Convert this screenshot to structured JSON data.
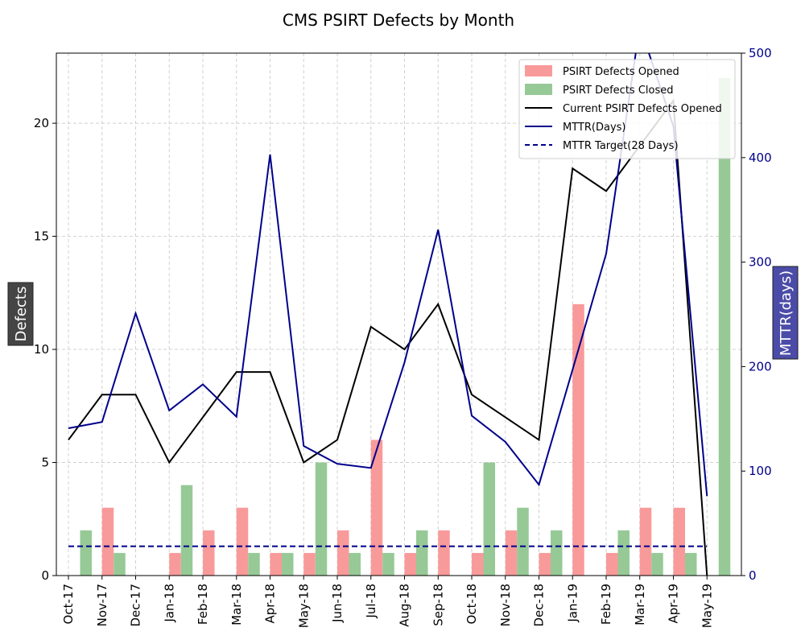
{
  "chart_data": {
    "type": "bar",
    "title": "CMS PSIRT Defects by Month",
    "ylabel": "Defects",
    "ylabel_right": "MTTR(days)",
    "xlabel": "",
    "categories": [
      "Oct-17",
      "Nov-17",
      "Dec-17",
      "Jan-18",
      "Feb-18",
      "Mar-18",
      "Apr-18",
      "May-18",
      "Jun-18",
      "Jul-18",
      "Aug-18",
      "Sep-18",
      "Oct-18",
      "Nov-18",
      "Dec-18",
      "Jan-19",
      "Feb-19",
      "Mar-19",
      "Apr-19",
      "May-19"
    ],
    "ylim": [
      0,
      23.1
    ],
    "ylim_right": [
      0,
      500
    ],
    "yticks": [
      0,
      5,
      10,
      15,
      20
    ],
    "yticks_right": [
      0,
      100,
      200,
      300,
      400,
      500
    ],
    "grid": true,
    "legend_position": "top-right",
    "series": [
      {
        "name": "PSIRT Defects Opened",
        "kind": "bar",
        "axis": "left",
        "color": "#f99a9a",
        "values": [
          0,
          3,
          0,
          1,
          2,
          3,
          1,
          1,
          2,
          6,
          1,
          2,
          1,
          2,
          1,
          12,
          1,
          3,
          3,
          0
        ]
      },
      {
        "name": "PSIRT Defects Closed",
        "kind": "bar",
        "axis": "left",
        "color": "#96c996",
        "values": [
          2,
          1,
          0,
          4,
          0,
          1,
          1,
          5,
          1,
          1,
          2,
          0,
          5,
          3,
          2,
          0,
          2,
          1,
          1,
          22
        ]
      },
      {
        "name": "Current PSIRT Defects Opened",
        "kind": "line",
        "axis": "left",
        "color": "#000000",
        "dash": "solid",
        "values": [
          6,
          8,
          8,
          5,
          7,
          9,
          9,
          5,
          6,
          11,
          10,
          12,
          8,
          7,
          6,
          18,
          17,
          19,
          21,
          0
        ]
      },
      {
        "name": "MTTR(Days)",
        "kind": "line",
        "axis": "right",
        "color": "#00008b",
        "dash": "solid",
        "values": [
          141,
          147,
          251,
          158,
          183,
          152,
          403,
          124,
          107,
          103,
          204,
          331,
          153,
          128,
          87,
          197,
          308,
          526,
          430,
          76
        ]
      },
      {
        "name": "MTTR Target(28 Days)",
        "kind": "line",
        "axis": "right",
        "color": "#00008b",
        "dash": "dashed",
        "values": [
          28,
          28,
          28,
          28,
          28,
          28,
          28,
          28,
          28,
          28,
          28,
          28,
          28,
          28,
          28,
          28,
          28,
          28,
          28,
          28
        ]
      }
    ]
  }
}
